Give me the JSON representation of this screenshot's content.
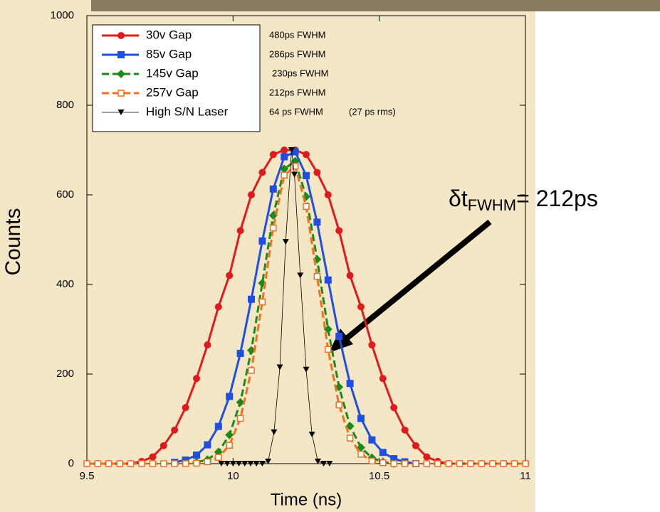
{
  "chart_data": {
    "type": "line",
    "xlabel": "Time (ns)",
    "ylabel": "Counts",
    "xlim": [
      9.5,
      11
    ],
    "xticks": [
      9.5,
      10,
      10.5,
      11
    ],
    "ylim": [
      0,
      1000
    ],
    "yticks": [
      0,
      200,
      400,
      600,
      800,
      1000
    ],
    "series": [
      {
        "name": "30v Gap",
        "color": "#e01b1b",
        "marker": "circle",
        "dash": false,
        "x": [
          9.5,
          9.5375,
          9.575,
          9.6125,
          9.65,
          9.6875,
          9.725,
          9.7625,
          9.8,
          9.8375,
          9.875,
          9.9125,
          9.95,
          9.9875,
          10.025,
          10.0625,
          10.1,
          10.1375,
          10.175,
          10.2125,
          10.25,
          10.2875,
          10.325,
          10.3625,
          10.4,
          10.4375,
          10.475,
          10.5125,
          10.55,
          10.5875,
          10.625,
          10.6625,
          10.7,
          10.7375,
          10.775,
          10.8125,
          10.85,
          10.8875,
          10.925,
          10.9625,
          11
        ],
        "values": [
          0,
          0,
          0,
          0,
          0,
          5,
          15,
          40,
          75,
          125,
          190,
          265,
          350,
          420,
          520,
          600,
          650,
          690,
          700,
          700,
          690,
          650,
          600,
          520,
          420,
          350,
          265,
          190,
          125,
          75,
          40,
          15,
          5,
          0,
          0,
          0,
          0,
          0,
          0,
          0,
          0
        ]
      },
      {
        "name": "85v Gap",
        "color": "#1f4fe0",
        "marker": "square",
        "dash": false,
        "x": [
          9.8,
          9.8375,
          9.875,
          9.9125,
          9.95,
          9.9875,
          10.025,
          10.0625,
          10.1,
          10.1375,
          10.175,
          10.2125,
          10.25,
          10.2875,
          10.325,
          10.3625,
          10.4,
          10.4375,
          10.475,
          10.5125,
          10.55,
          10.5875,
          10.625
        ],
        "values": [
          3,
          8,
          19,
          42,
          83,
          150,
          246,
          367,
          497,
          613,
          685,
          696,
          643,
          539,
          410,
          284,
          179,
          101,
          53,
          25,
          11,
          4,
          0
        ]
      },
      {
        "name": "145v Gap",
        "color": "#1a8a1a",
        "marker": "diamond",
        "dash": true,
        "x": [
          9.875,
          9.9125,
          9.95,
          9.9875,
          10.025,
          10.0625,
          10.1,
          10.1375,
          10.175,
          10.2125,
          10.25,
          10.2875,
          10.325,
          10.3625,
          10.4,
          10.4375,
          10.475,
          10.5125,
          10.55
        ],
        "values": [
          3,
          9,
          26,
          64,
          137,
          253,
          403,
          554,
          658,
          675,
          596,
          456,
          300,
          171,
          84,
          36,
          13,
          4,
          0
        ]
      },
      {
        "name": "257v Gap",
        "color": "#f07020",
        "marker": "open-square",
        "dash": true,
        "x": [
          9.5,
          9.5375,
          9.575,
          9.6125,
          9.65,
          9.6875,
          9.725,
          9.7625,
          9.8,
          9.8375,
          9.875,
          9.9125,
          9.95,
          9.9875,
          10.025,
          10.0625,
          10.1,
          10.1375,
          10.175,
          10.2125,
          10.25,
          10.2875,
          10.325,
          10.3625,
          10.4,
          10.4375,
          10.475,
          10.5125,
          10.55,
          10.5875,
          10.625,
          10.6625,
          10.7,
          10.7375,
          10.775,
          10.8125,
          10.85,
          10.8875,
          10.925,
          10.9625,
          11
        ],
        "values": [
          0,
          0,
          0,
          0,
          0,
          0,
          0,
          0,
          0,
          0,
          1,
          4,
          14,
          41,
          101,
          208,
          361,
          526,
          644,
          664,
          574,
          418,
          255,
          131,
          57,
          21,
          6,
          2,
          0,
          0,
          0,
          0,
          0,
          0,
          0,
          0,
          0,
          0,
          0,
          0,
          0
        ]
      },
      {
        "name": "High S/N Laser",
        "color": "#000000",
        "marker": "triangle-down",
        "dash": false,
        "x": [
          9.96,
          9.98,
          10.0,
          10.02,
          10.04,
          10.06,
          10.08,
          10.1,
          10.12,
          10.14,
          10.16,
          10.18,
          10.2,
          10.21,
          10.23,
          10.25,
          10.27,
          10.29,
          10.31,
          10.33
        ],
        "values": [
          0,
          0,
          0,
          0,
          0,
          0,
          0,
          0,
          5,
          70,
          215,
          495,
          700,
          645,
          420,
          210,
          65,
          5,
          0,
          0
        ]
      }
    ],
    "notes": [
      "480ps FWHM",
      "286ps FWHM",
      "230ps FWHM",
      "212ps FWHM",
      "64 ps FWHM",
      "(27 ps rms)"
    ],
    "annotation": {
      "text": "δt",
      "subscript": "FWHM",
      "suffix": "= 212ps"
    }
  }
}
